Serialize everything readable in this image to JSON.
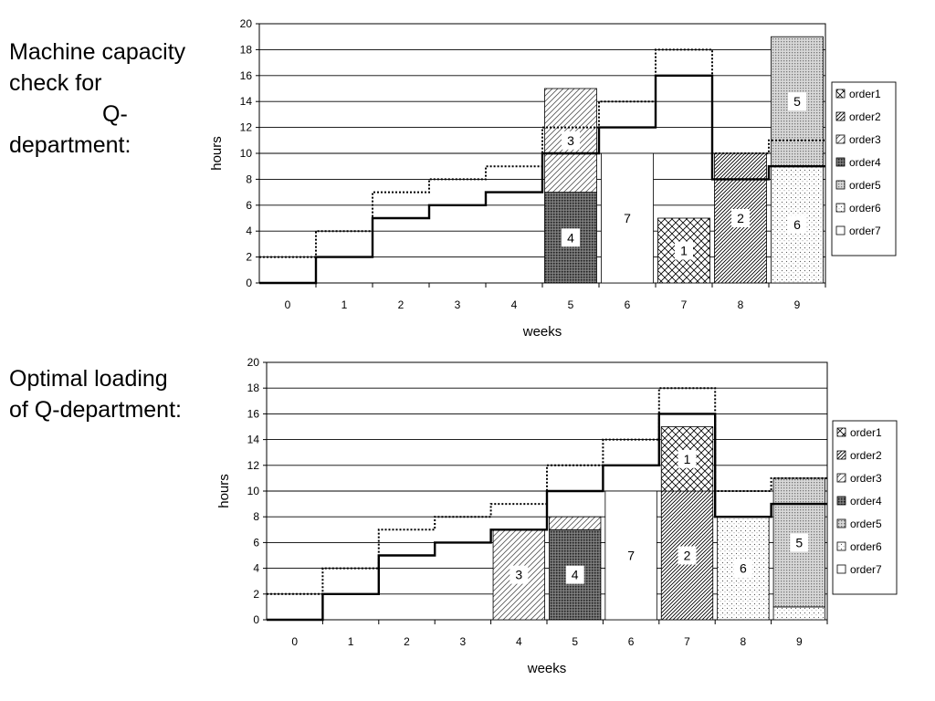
{
  "captions": {
    "top": [
      "Machine capacity",
      "check for",
      "Q-",
      "department:"
    ],
    "bottom": [
      "Optimal loading",
      "of Q-department:"
    ]
  },
  "patterns": {
    "order1": "crosshatch",
    "order2": "diagonal-dense",
    "order3": "diagonal-sparse",
    "order4": "dark-dots",
    "order5": "grey-dots",
    "order6": "light-dots",
    "order7": "blank"
  },
  "chart_data": [
    {
      "type": "bar",
      "title": "Machine capacity check for Q-department",
      "xlabel": "weeks",
      "ylabel": "hours",
      "categories": [
        "0",
        "1",
        "2",
        "3",
        "4",
        "5",
        "6",
        "7",
        "8",
        "9"
      ],
      "ylim": [
        0,
        20
      ],
      "yticks": [
        "0",
        "2",
        "4",
        "6",
        "8",
        "10",
        "12",
        "14",
        "16",
        "18",
        "20"
      ],
      "grid": true,
      "legend": [
        "order1",
        "order2",
        "order3",
        "order4",
        "order5",
        "order6",
        "order7"
      ],
      "legend_position": "right",
      "capacity_solid": [
        0,
        2,
        5,
        6,
        7,
        10,
        12,
        16,
        8,
        9
      ],
      "capacity_dotted": [
        2,
        4,
        7,
        8,
        9,
        12,
        14,
        18,
        10,
        11
      ],
      "stacks": [
        {
          "week": 5,
          "order": "order4",
          "from": 0,
          "to": 7,
          "label": "4"
        },
        {
          "week": 5,
          "order": "order3",
          "from": 7,
          "to": 15,
          "label": "3"
        },
        {
          "week": 6,
          "order": "order7",
          "from": 0,
          "to": 10,
          "label": "7"
        },
        {
          "week": 7,
          "order": "order1",
          "from": 0,
          "to": 5,
          "label": "1"
        },
        {
          "week": 8,
          "order": "order2",
          "from": 0,
          "to": 10,
          "label": "2"
        },
        {
          "week": 9,
          "order": "order6",
          "from": 0,
          "to": 9,
          "label": "6"
        },
        {
          "week": 9,
          "order": "order5",
          "from": 9,
          "to": 19,
          "label": "5"
        }
      ]
    },
    {
      "type": "bar",
      "title": "Optimal loading of Q-department",
      "xlabel": "weeks",
      "ylabel": "hours",
      "categories": [
        "0",
        "1",
        "2",
        "3",
        "4",
        "5",
        "6",
        "7",
        "8",
        "9"
      ],
      "ylim": [
        0,
        20
      ],
      "yticks": [
        "0",
        "2",
        "4",
        "6",
        "8",
        "10",
        "12",
        "14",
        "16",
        "18",
        "20"
      ],
      "grid": true,
      "legend": [
        "order1",
        "order2",
        "order3",
        "order4",
        "order5",
        "order6",
        "order7"
      ],
      "legend_position": "right",
      "capacity_solid": [
        0,
        2,
        5,
        6,
        7,
        10,
        12,
        16,
        8,
        9
      ],
      "capacity_dotted": [
        2,
        4,
        7,
        8,
        9,
        12,
        14,
        18,
        10,
        11
      ],
      "stacks": [
        {
          "week": 4,
          "order": "order3",
          "from": 0,
          "to": 7,
          "label": "3"
        },
        {
          "week": 5,
          "order": "order4",
          "from": 0,
          "to": 7,
          "label": "4"
        },
        {
          "week": 5,
          "order": "order3",
          "from": 7,
          "to": 8,
          "label": ""
        },
        {
          "week": 6,
          "order": "order7",
          "from": 0,
          "to": 10,
          "label": "7"
        },
        {
          "week": 7,
          "order": "order2",
          "from": 0,
          "to": 10,
          "label": "2"
        },
        {
          "week": 7,
          "order": "order1",
          "from": 10,
          "to": 15,
          "label": "1"
        },
        {
          "week": 8,
          "order": "order6",
          "from": 0,
          "to": 8,
          "label": "6"
        },
        {
          "week": 9,
          "order": "order6",
          "from": 0,
          "to": 1,
          "label": ""
        },
        {
          "week": 9,
          "order": "order5",
          "from": 1,
          "to": 11,
          "label": "5"
        }
      ]
    }
  ]
}
